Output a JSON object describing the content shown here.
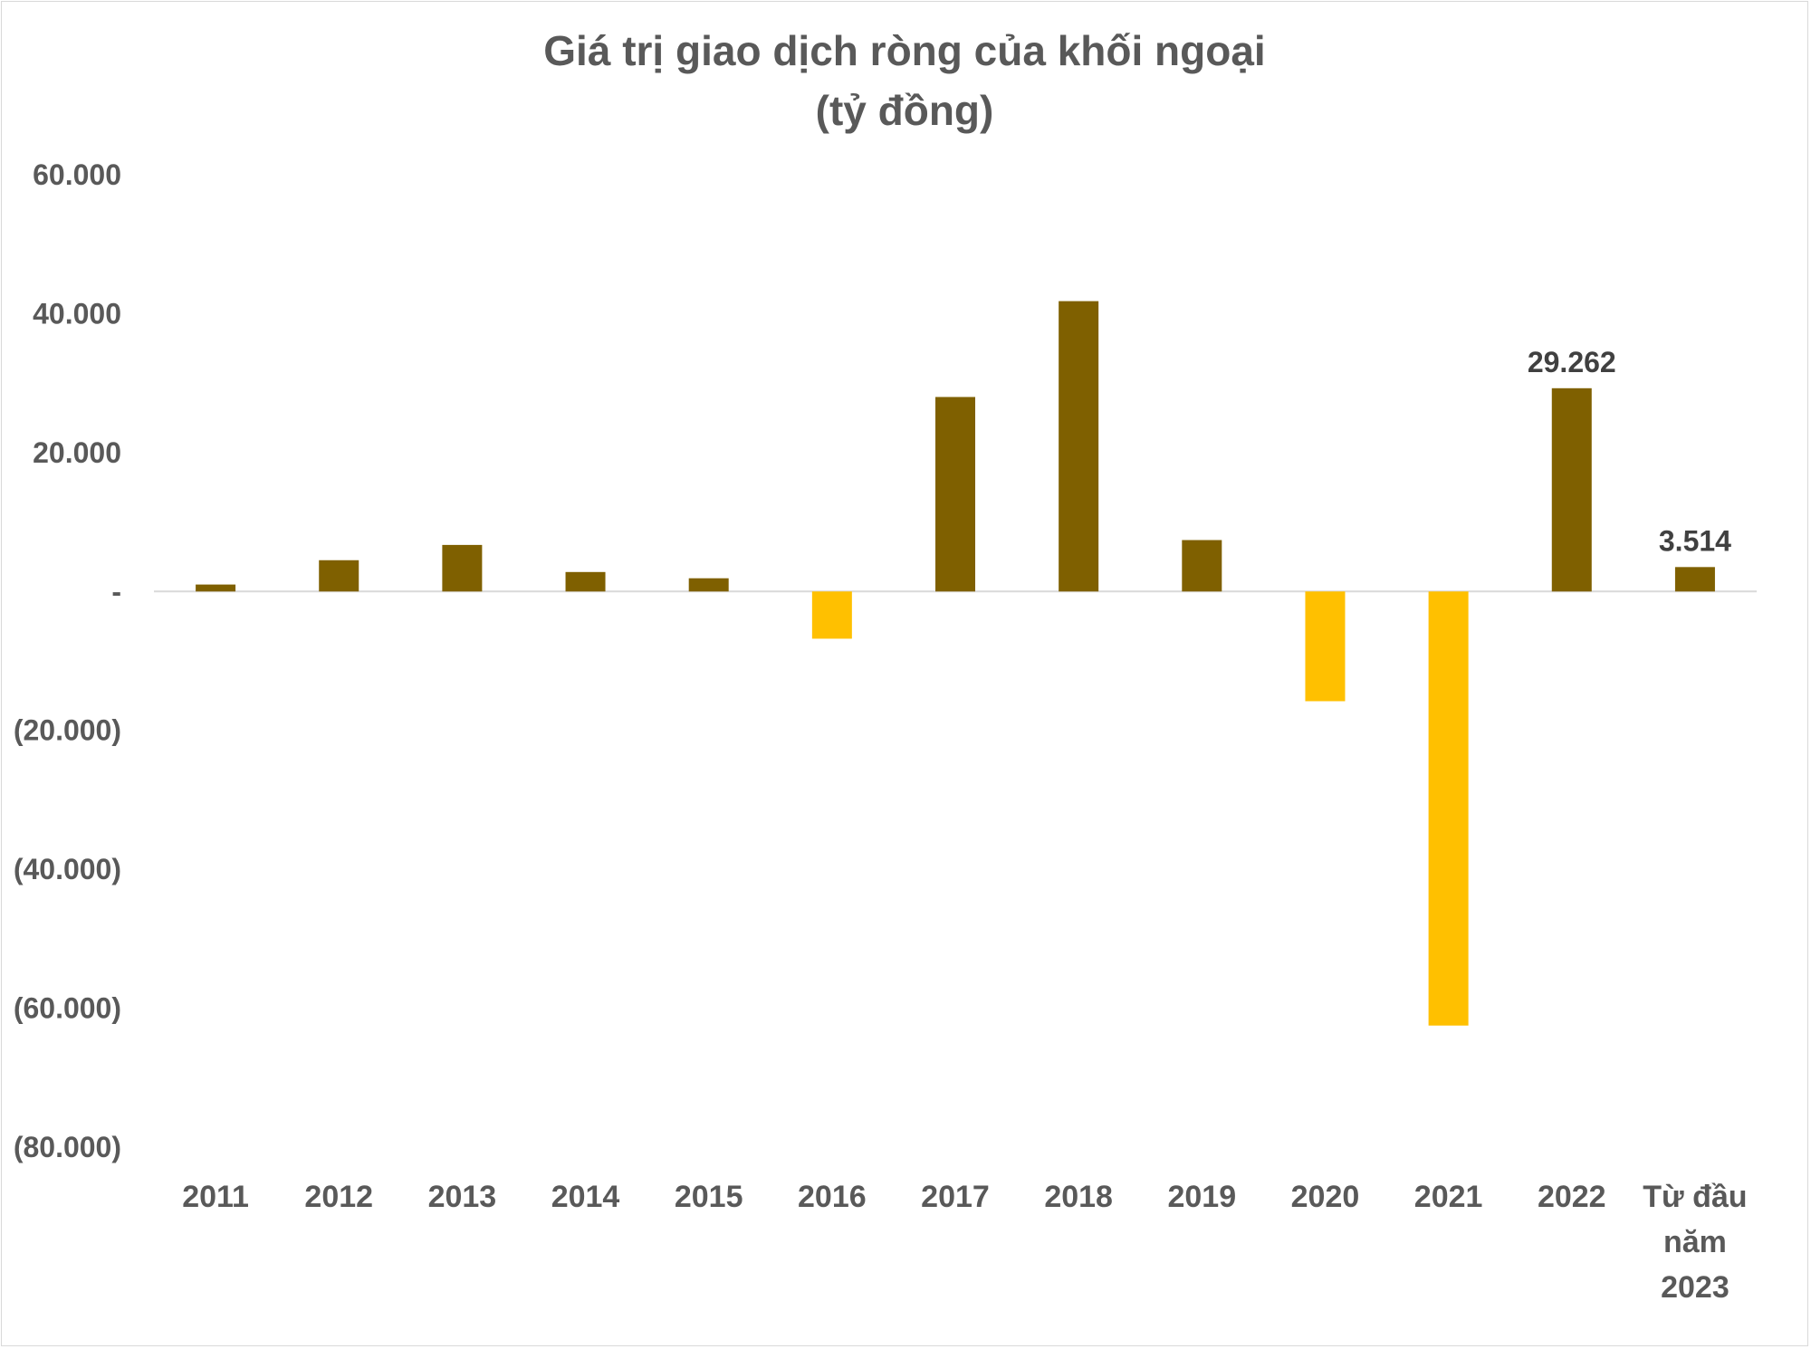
{
  "chart_data": {
    "type": "bar",
    "title": "Giá trị giao dịch ròng của khối ngoại",
    "subtitle": "(tỷ đồng)",
    "xlabel": "",
    "ylabel": "",
    "ylim": [
      -80000,
      60000
    ],
    "yticks": [
      60000,
      40000,
      20000,
      0,
      -20000,
      -40000,
      -60000,
      -80000
    ],
    "ytick_labels": [
      "60.000",
      "40.000",
      "20.000",
      "-",
      "(20.000)",
      "(40.000)",
      "(60.000)",
      "(80.000)"
    ],
    "categories": [
      "2011",
      "2012",
      "2013",
      "2014",
      "2015",
      "2016",
      "2017",
      "2018",
      "2019",
      "2020",
      "2021",
      "2022",
      "Từ đầu năm 2023"
    ],
    "category_lines": [
      [
        "2011"
      ],
      [
        "2012"
      ],
      [
        "2013"
      ],
      [
        "2014"
      ],
      [
        "2015"
      ],
      [
        "2016"
      ],
      [
        "2017"
      ],
      [
        "2018"
      ],
      [
        "2019"
      ],
      [
        "2020"
      ],
      [
        "2021"
      ],
      [
        "2022"
      ],
      [
        "Từ đầu",
        "năm",
        "2023"
      ]
    ],
    "values": [
      1000,
      4500,
      6700,
      2800,
      1900,
      -6800,
      28000,
      41800,
      7400,
      -15800,
      -62500,
      29262,
      3514
    ],
    "data_labels": [
      null,
      null,
      null,
      null,
      null,
      null,
      null,
      null,
      null,
      null,
      null,
      "29.262",
      "3.514"
    ],
    "grid": false,
    "legend": "none",
    "colors": {
      "positive": "#7f6000",
      "negative": "#ffc000",
      "zero_line": "#d9d9d9"
    }
  }
}
